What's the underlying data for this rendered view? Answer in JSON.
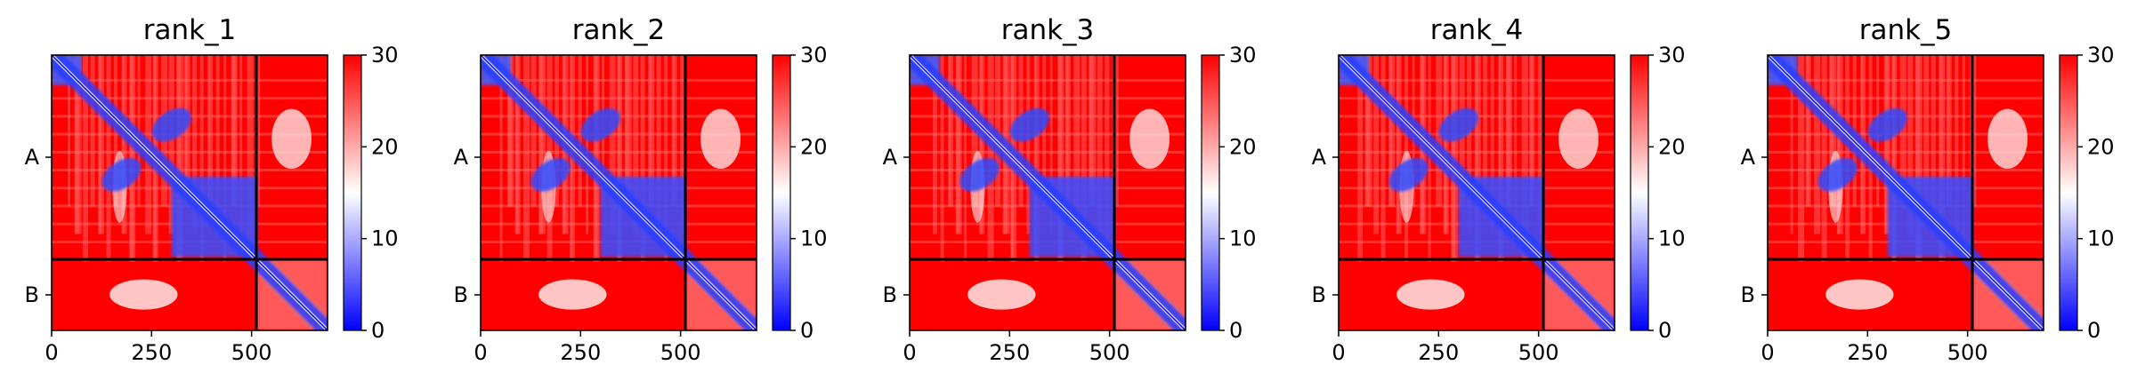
{
  "figure": {
    "colorbar_ticks": [
      "0",
      "10",
      "20",
      "30"
    ],
    "x_ticks": [
      "0",
      "250",
      "500"
    ],
    "y_ticks": [
      "A",
      "B"
    ]
  },
  "chart_data": [
    {
      "type": "heatmap",
      "title": "rank_1",
      "colormap": "bwr",
      "colors": {
        "low": "#0000ff",
        "mid": "#ffffff",
        "high": "#ff0000"
      },
      "color_range": [
        0,
        30
      ],
      "colorbar_ticks": [
        0,
        10,
        20,
        30
      ],
      "x_ticks": [
        0,
        250,
        500
      ],
      "xlim": [
        0,
        690
      ],
      "y_tick_labels": [
        "A",
        "B"
      ],
      "chain_lengths": {
        "A": 512,
        "B": 178
      },
      "chain_boundary": 512,
      "matrix_size": 690
    },
    {
      "type": "heatmap",
      "title": "rank_2",
      "colormap": "bwr",
      "colors": {
        "low": "#0000ff",
        "mid": "#ffffff",
        "high": "#ff0000"
      },
      "color_range": [
        0,
        30
      ],
      "colorbar_ticks": [
        0,
        10,
        20,
        30
      ],
      "x_ticks": [
        0,
        250,
        500
      ],
      "xlim": [
        0,
        690
      ],
      "y_tick_labels": [
        "A",
        "B"
      ],
      "chain_lengths": {
        "A": 512,
        "B": 178
      },
      "chain_boundary": 512,
      "matrix_size": 690
    },
    {
      "type": "heatmap",
      "title": "rank_3",
      "colormap": "bwr",
      "colors": {
        "low": "#0000ff",
        "mid": "#ffffff",
        "high": "#ff0000"
      },
      "color_range": [
        0,
        30
      ],
      "colorbar_ticks": [
        0,
        10,
        20,
        30
      ],
      "x_ticks": [
        0,
        250,
        500
      ],
      "xlim": [
        0,
        690
      ],
      "y_tick_labels": [
        "A",
        "B"
      ],
      "chain_lengths": {
        "A": 512,
        "B": 178
      },
      "chain_boundary": 512,
      "matrix_size": 690
    },
    {
      "type": "heatmap",
      "title": "rank_4",
      "colormap": "bwr",
      "colors": {
        "low": "#0000ff",
        "mid": "#ffffff",
        "high": "#ff0000"
      },
      "color_range": [
        0,
        30
      ],
      "colorbar_ticks": [
        0,
        10,
        20,
        30
      ],
      "x_ticks": [
        0,
        250,
        500
      ],
      "xlim": [
        0,
        690
      ],
      "y_tick_labels": [
        "A",
        "B"
      ],
      "chain_lengths": {
        "A": 512,
        "B": 178
      },
      "chain_boundary": 512,
      "matrix_size": 690
    },
    {
      "type": "heatmap",
      "title": "rank_5",
      "colormap": "bwr",
      "colors": {
        "low": "#0000ff",
        "mid": "#ffffff",
        "high": "#ff0000"
      },
      "color_range": [
        0,
        30
      ],
      "colorbar_ticks": [
        0,
        10,
        20,
        30
      ],
      "x_ticks": [
        0,
        250,
        500
      ],
      "xlim": [
        0,
        690
      ],
      "y_tick_labels": [
        "A",
        "B"
      ],
      "chain_lengths": {
        "A": 512,
        "B": 178
      },
      "chain_boundary": 512,
      "matrix_size": 690
    }
  ]
}
